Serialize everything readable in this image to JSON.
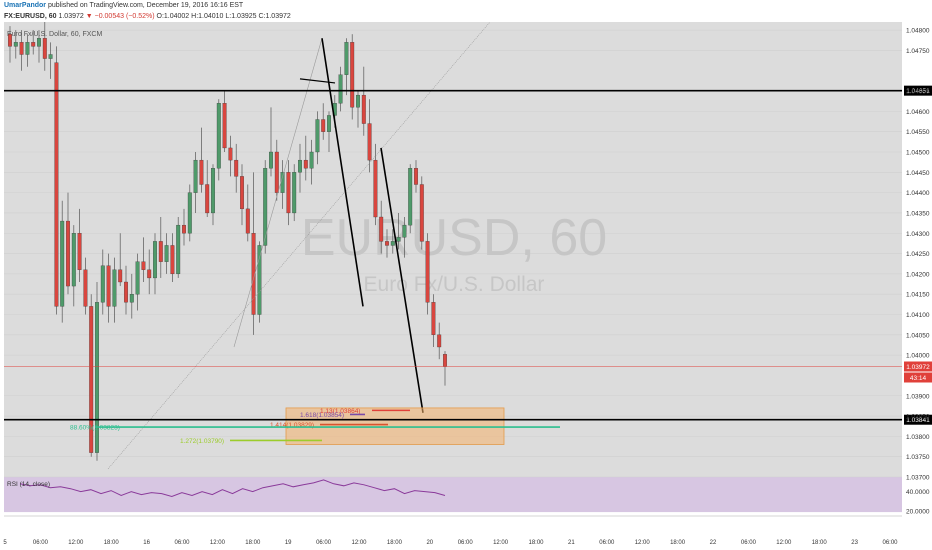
{
  "header": {
    "author": "UmarPandor",
    "published": "published on TradingView.com, December 19, 2016 16:16 EST",
    "symbol": "FX:EURUSD, 60",
    "last": "1.03972",
    "change": "▼ −0.00543 (−0.52%)",
    "ohlc": "O:1.04002 H:1.04010 L:1.03925 C:1.03972"
  },
  "chart_data": {
    "type": "candlestick",
    "legend_text": "Euro Fx/U.S. Dollar, 60, FXCM",
    "watermark": {
      "symbol": "EURUSD, 60",
      "name": "Euro Fx/U.S. Dollar"
    },
    "ylim": [
      1.037,
      1.0482
    ],
    "y_ticks": [
      "1.04800",
      "1.04750",
      "1.04650",
      "1.04600",
      "1.04550",
      "1.04500",
      "1.04450",
      "1.04400",
      "1.04350",
      "1.04300",
      "1.04250",
      "1.04200",
      "1.04150",
      "1.04100",
      "1.04050",
      "1.04000",
      "1.03900",
      "1.03850",
      "1.03800",
      "1.03750",
      "1.03700"
    ],
    "x_ticks": [
      "5",
      "06:00",
      "12:00",
      "18:00",
      "16",
      "06:00",
      "12:00",
      "18:00",
      "19",
      "06:00",
      "12:00",
      "18:00",
      "20",
      "06:00",
      "12:00",
      "18:00",
      "21",
      "06:00",
      "12:00",
      "18:00",
      "22",
      "06:00",
      "12:00",
      "18:00",
      "23",
      "06:00"
    ],
    "horizontal_levels": [
      {
        "label": "1.04651",
        "value": 1.04651,
        "color": "#000000"
      },
      {
        "label": "1.03841",
        "value": 1.03841,
        "color": "#000000"
      },
      {
        "label": "1.03972",
        "value": 1.03972,
        "color": "#e0403a"
      }
    ],
    "current_price_label": "1.03972",
    "countdown_label": "43:14",
    "fib_levels": [
      {
        "label": "1.13(1.03864)",
        "value": 1.03864,
        "color": "#e0403a"
      },
      {
        "label": "1.618(1.03854)",
        "value": 1.03854,
        "color": "#7a4aa8"
      },
      {
        "label": "1.414(1.03829)",
        "value": 1.03829,
        "color": "#d9532c"
      },
      {
        "label": "88.60%(1.03823)",
        "value": 1.03823,
        "color": "#2dbf8f"
      },
      {
        "label": "1.272(1.03790)",
        "value": 1.0379,
        "color": "#9ccc2b"
      }
    ],
    "zone": {
      "low": 1.0378,
      "high": 1.0387,
      "color": "#f5b26b"
    },
    "candles": [
      [
        1.0479,
        1.0481,
        1.0472,
        1.0476
      ],
      [
        1.0476,
        1.048,
        1.0473,
        1.0477
      ],
      [
        1.0477,
        1.048,
        1.047,
        1.0474
      ],
      [
        1.0474,
        1.0479,
        1.0471,
        1.0477
      ],
      [
        1.0477,
        1.048,
        1.0474,
        1.0476
      ],
      [
        1.0476,
        1.048,
        1.0472,
        1.0478
      ],
      [
        1.0478,
        1.0482,
        1.047,
        1.0473
      ],
      [
        1.0473,
        1.0477,
        1.0468,
        1.0474
      ],
      [
        1.0472,
        1.0476,
        1.041,
        1.0412
      ],
      [
        1.0412,
        1.0438,
        1.0408,
        1.0433
      ],
      [
        1.0433,
        1.044,
        1.0415,
        1.0417
      ],
      [
        1.0417,
        1.0432,
        1.0412,
        1.043
      ],
      [
        1.043,
        1.0436,
        1.0418,
        1.0421
      ],
      [
        1.0421,
        1.0424,
        1.041,
        1.0412
      ],
      [
        1.0412,
        1.0415,
        1.0375,
        1.0376
      ],
      [
        1.0376,
        1.0418,
        1.0374,
        1.0413
      ],
      [
        1.0413,
        1.0426,
        1.041,
        1.0422
      ],
      [
        1.0422,
        1.0425,
        1.0408,
        1.0412
      ],
      [
        1.0412,
        1.0424,
        1.0408,
        1.0421
      ],
      [
        1.0421,
        1.043,
        1.0417,
        1.0418
      ],
      [
        1.0418,
        1.0422,
        1.041,
        1.0413
      ],
      [
        1.0413,
        1.042,
        1.0409,
        1.0415
      ],
      [
        1.0415,
        1.0425,
        1.0411,
        1.0423
      ],
      [
        1.0423,
        1.0429,
        1.0418,
        1.0421
      ],
      [
        1.0421,
        1.0426,
        1.0415,
        1.0419
      ],
      [
        1.0419,
        1.043,
        1.0415,
        1.0428
      ],
      [
        1.0428,
        1.0434,
        1.0419,
        1.0423
      ],
      [
        1.0423,
        1.043,
        1.042,
        1.0427
      ],
      [
        1.0427,
        1.043,
        1.0418,
        1.042
      ],
      [
        1.042,
        1.0434,
        1.0419,
        1.0432
      ],
      [
        1.0432,
        1.0436,
        1.0427,
        1.043
      ],
      [
        1.043,
        1.0442,
        1.0428,
        1.044
      ],
      [
        1.044,
        1.045,
        1.0435,
        1.0448
      ],
      [
        1.0448,
        1.0456,
        1.044,
        1.0442
      ],
      [
        1.0442,
        1.0448,
        1.0434,
        1.0435
      ],
      [
        1.0435,
        1.0447,
        1.0432,
        1.0446
      ],
      [
        1.0446,
        1.0463,
        1.0443,
        1.0462
      ],
      [
        1.0462,
        1.0465,
        1.045,
        1.0451
      ],
      [
        1.0451,
        1.0454,
        1.0444,
        1.0448
      ],
      [
        1.0448,
        1.0452,
        1.044,
        1.0444
      ],
      [
        1.0444,
        1.0447,
        1.0432,
        1.0436
      ],
      [
        1.0436,
        1.0442,
        1.0428,
        1.043
      ],
      [
        1.043,
        1.0445,
        1.0405,
        1.041
      ],
      [
        1.041,
        1.0428,
        1.0408,
        1.0427
      ],
      [
        1.0427,
        1.0448,
        1.0425,
        1.0446
      ],
      [
        1.0446,
        1.0461,
        1.0444,
        1.045
      ],
      [
        1.045,
        1.0453,
        1.0438,
        1.044
      ],
      [
        1.044,
        1.0448,
        1.0436,
        1.0445
      ],
      [
        1.0445,
        1.0448,
        1.0432,
        1.0435
      ],
      [
        1.0435,
        1.0447,
        1.0433,
        1.0445
      ],
      [
        1.0445,
        1.0452,
        1.044,
        1.0448
      ],
      [
        1.0448,
        1.0454,
        1.0443,
        1.0446
      ],
      [
        1.0446,
        1.0453,
        1.0442,
        1.045
      ],
      [
        1.045,
        1.046,
        1.0447,
        1.0458
      ],
      [
        1.0458,
        1.0462,
        1.0453,
        1.0455
      ],
      [
        1.0455,
        1.046,
        1.045,
        1.0459
      ],
      [
        1.0459,
        1.0464,
        1.0456,
        1.0462
      ],
      [
        1.0462,
        1.0471,
        1.046,
        1.0469
      ],
      [
        1.0469,
        1.0478,
        1.0464,
        1.0477
      ],
      [
        1.0477,
        1.0479,
        1.0458,
        1.0461
      ],
      [
        1.0461,
        1.0465,
        1.0456,
        1.0464
      ],
      [
        1.0464,
        1.0471,
        1.0454,
        1.0457
      ],
      [
        1.0457,
        1.0463,
        1.0445,
        1.0448
      ],
      [
        1.0448,
        1.0452,
        1.0432,
        1.0434
      ],
      [
        1.0434,
        1.0438,
        1.0425,
        1.0428
      ],
      [
        1.0428,
        1.0431,
        1.0424,
        1.0427
      ],
      [
        1.0427,
        1.0431,
        1.0425,
        1.0428
      ],
      [
        1.0428,
        1.0435,
        1.0426,
        1.0429
      ],
      [
        1.0429,
        1.0434,
        1.0424,
        1.0432
      ],
      [
        1.0432,
        1.0447,
        1.043,
        1.0446
      ],
      [
        1.0446,
        1.0448,
        1.044,
        1.0442
      ],
      [
        1.0442,
        1.0444,
        1.0426,
        1.0428
      ],
      [
        1.0428,
        1.043,
        1.041,
        1.0413
      ],
      [
        1.0413,
        1.0415,
        1.0402,
        1.0405
      ],
      [
        1.0405,
        1.0408,
        1.0399,
        1.0402
      ],
      [
        1.04002,
        1.0401,
        1.03925,
        1.03972
      ]
    ],
    "x_start_label": "5",
    "rsi": {
      "label": "RSI (14, close)",
      "ylim": [
        15,
        55
      ],
      "y_ticks": [
        "40.0000",
        "20.0000"
      ],
      "values": [
        48,
        46,
        47,
        44,
        45,
        43,
        40,
        42,
        38,
        41,
        36,
        40,
        37,
        39,
        38,
        35,
        39,
        36,
        40,
        37,
        42,
        38,
        43,
        40,
        44,
        46,
        48,
        45,
        47,
        49,
        52,
        48,
        46,
        49,
        47,
        44,
        41,
        43,
        38,
        41,
        40,
        39,
        36
      ]
    }
  }
}
